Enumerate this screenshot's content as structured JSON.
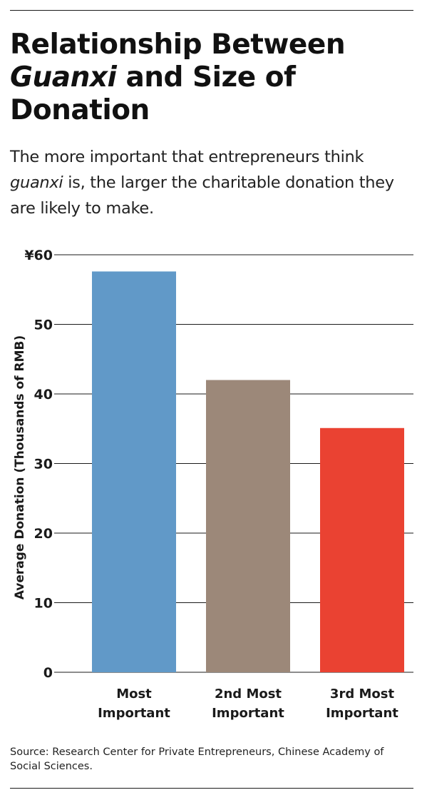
{
  "header": {
    "title_part1": "Relationship Between",
    "title_italic": "Guanxi",
    "title_part2": "and Size of Donation",
    "subtitle_part1": "The more important that entrepreneurs think",
    "subtitle_italic": "guanxi",
    "subtitle_part2": "is, the larger the charitable donation they are likely to make."
  },
  "chart_data": {
    "type": "bar",
    "title": "Relationship Between Guanxi and Size of Donation",
    "ylabel": "Average Donation (Thousands of RMB)",
    "xlabel": "",
    "ylim": [
      0,
      60
    ],
    "yticks": [
      0,
      10,
      20,
      30,
      40,
      50,
      60
    ],
    "ytick_labels": [
      "0",
      "10",
      "20",
      "30",
      "40",
      "50",
      "¥60"
    ],
    "categories": [
      [
        "Most",
        "Important"
      ],
      [
        "2nd Most",
        "Important"
      ],
      [
        "3rd Most",
        "Important"
      ]
    ],
    "values": [
      57.6,
      42,
      35.1
    ],
    "bar_colors": [
      "#6199c8",
      "#9c8879",
      "#ea4232"
    ],
    "grid": true
  },
  "footer": {
    "source": "Source: Research Center for Private Entrepreneurs, Chinese Academy of Social Sciences."
  }
}
